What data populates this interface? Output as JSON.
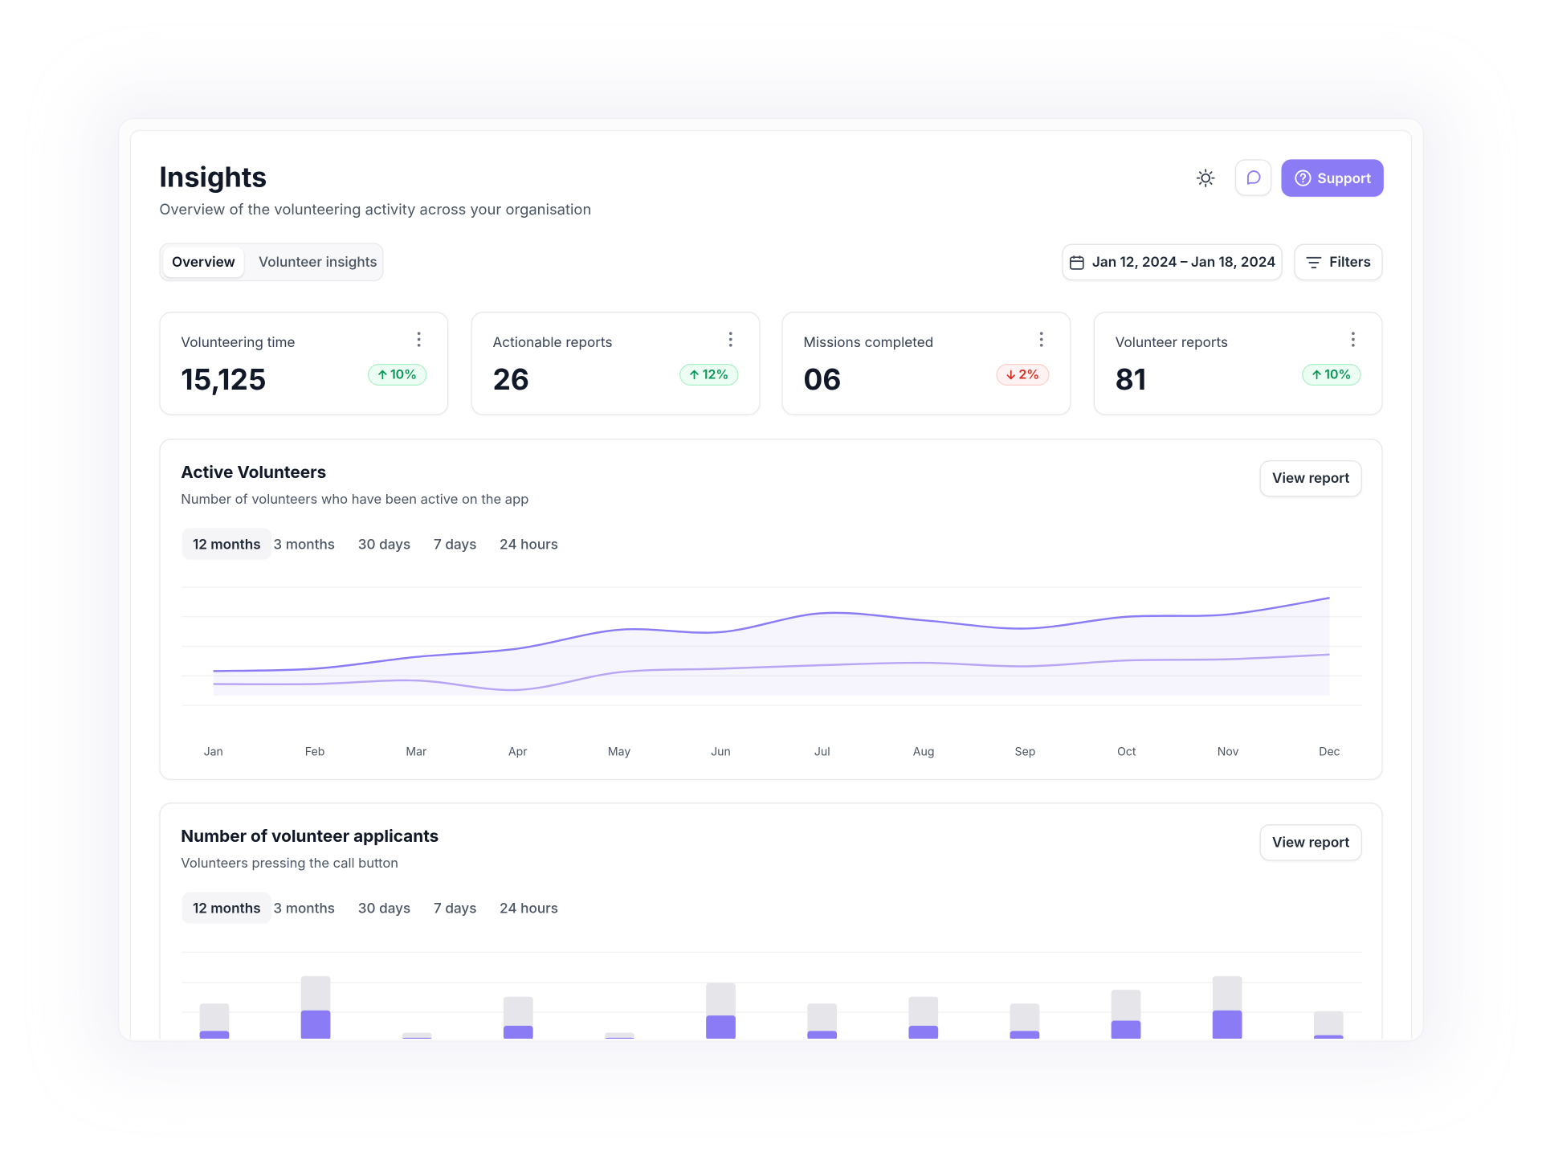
{
  "header": {
    "title": "Insights",
    "subtitle": "Overview of the volunteering activity across your organisation",
    "support": "Support"
  },
  "tabs": [
    "Overview",
    "Volunteer insights"
  ],
  "date_range": "Jan 12, 2024 – Jan 18, 2024",
  "filters": "Filters",
  "kpis": [
    {
      "label": "Volunteering time",
      "value": "15,125",
      "change": "10%",
      "direction": "up"
    },
    {
      "label": "Actionable reports",
      "value": "26",
      "change": "12%",
      "direction": "up"
    },
    {
      "label": "Missions completed",
      "value": "06",
      "change": "2%",
      "direction": "down"
    },
    {
      "label": "Volunteer reports",
      "value": "81",
      "change": "10%",
      "direction": "up"
    }
  ],
  "chart_data": [
    {
      "type": "line",
      "title": "Active Volunteers",
      "subtitle": "Number of volunteers who have been active on the app",
      "button": "View report",
      "ranges": [
        "12 months",
        "3 months",
        "30 days",
        "7 days",
        "24 hours"
      ],
      "categories": [
        "Jan",
        "Feb",
        "Mar",
        "Apr",
        "May",
        "Jun",
        "Jul",
        "Aug",
        "Sep",
        "Oct",
        "Nov",
        "Dec"
      ],
      "ylim": [
        0,
        100
      ],
      "series": [
        {
          "color": "#8b7cf6",
          "values": [
            29,
            31,
            41,
            48,
            64,
            62,
            78,
            72,
            65,
            75,
            77,
            91
          ]
        },
        {
          "color": "#b8a6f5",
          "values": [
            18,
            18,
            21,
            13,
            28,
            31,
            34,
            36,
            33,
            38,
            39,
            43
          ]
        }
      ]
    },
    {
      "type": "bar",
      "title": "Number of volunteer applicants",
      "subtitle": "Volunteers pressing the call button",
      "button": "View report",
      "ranges": [
        "12 months",
        "3 months",
        "30 days",
        "7 days",
        "24 hours"
      ],
      "categories": [
        null,
        null,
        null,
        null,
        null,
        null,
        null,
        null,
        null,
        null,
        null,
        null
      ],
      "ylim": [
        0,
        100
      ],
      "series": [
        {
          "color": "#e6e6ea",
          "values": [
            40,
            72,
            6,
            48,
            6,
            64,
            40,
            48,
            40,
            56,
            72,
            31
          ]
        },
        {
          "color": "#8b7cf6",
          "values": [
            8,
            32,
            0,
            14,
            0,
            26,
            8,
            14,
            8,
            20,
            32,
            3
          ]
        }
      ]
    }
  ]
}
